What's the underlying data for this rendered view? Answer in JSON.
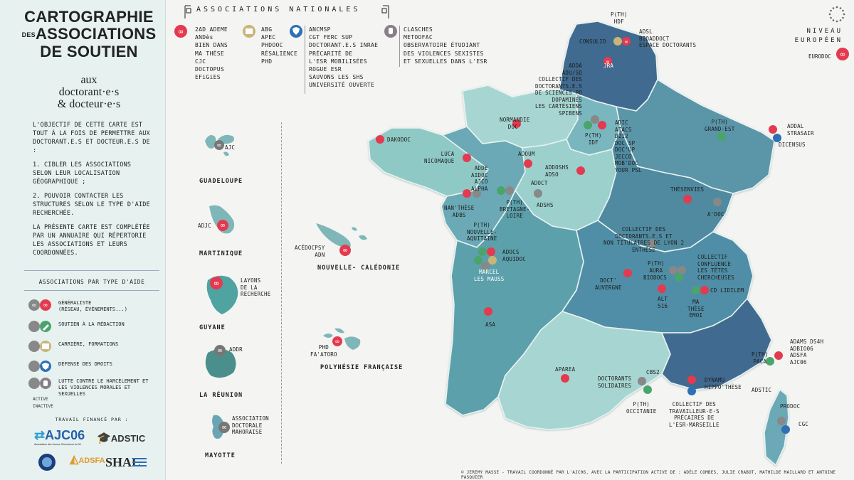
{
  "panel": {
    "title_line1": "CARTOGRAPHIE",
    "title_des": "DES",
    "title_line2": "ASSOCIATIONS",
    "title_line3": "DE SOUTIEN",
    "aux": "aux",
    "doctorants": "doctorant·e·s",
    "docteurs": "& docteur·e·s",
    "intro": "L'OBJECTIF DE CETTE CARTE EST TOUT À LA FOIS DE PERMETTRE AUX DOCTORANT.E.S ET DOCTEUR.E.S DE :",
    "point1": "1. CIBLER LES ASSOCIATIONS SELON LEUR LOCALISATION GÉOGRAPHIQUE ;",
    "point2": "2. POUVOIR CONTACTER LES STRUCTURES SELON LE TYPE D'AIDE RECHERCHÉE.",
    "outro": "LA PRÉSENTE CARTE EST COMPLÉTÉE PAR UN ANNUAIRE QUI RÉPERTORIE LES ASSOCIATIONS ET LEURS COORDONNÉES.",
    "types_title": "ASSOCIATIONS PAR TYPE D'AIDE",
    "types": [
      {
        "label": "GÉNÉRALISTE\n(RÉSEAU, ÉVÉNEMENTS...)",
        "icon": "infinity-icon",
        "color": "#e43a4f"
      },
      {
        "label": "SOUTIEN À LA RÉDACTION",
        "icon": "pen-icon",
        "color": "#4aa56b"
      },
      {
        "label": "CARRIÈRE, FORMATIONS",
        "icon": "book-icon",
        "color": "#c9b677"
      },
      {
        "label": "DÉFENSE DES DROITS",
        "icon": "shield-icon",
        "color": "#2f6fb6"
      },
      {
        "label": "LUTTE CONTRE LE HARCÈLEMENT ET LES VIOLENCES MORALES ET SEXUELLES",
        "icon": "hand-icon",
        "color": "#8a7f86"
      }
    ],
    "active": "ACTIVE",
    "inactive": "INACTIVE",
    "funded": "TRAVAIL FINANCÉ PAR :",
    "sponsors": [
      "AJC06",
      "ADSTIC",
      "ADSFA"
    ],
    "sponsor_ajc06_sub": "Association des Jeunes Chercheurs du 06"
  },
  "national": {
    "title": "ASSOCIATIONS NATIONALES",
    "general": [
      "2AD ADEME",
      "ANDès",
      "BIEN DANS\nMA THÈSE",
      "CJC",
      "DOCTOPUS",
      "EFiGiES"
    ],
    "career": [
      "ABG",
      "APEC",
      "PHDOOC",
      "RÉSALIENCE\nPHD"
    ],
    "rights": [
      "ANCMSP",
      "CGT FERC SUP",
      "DOCTORANT.E.S INRAE",
      "PRÉCARITÉ DE\nL'ESR MOBILISÉES",
      "ROGUE ESR",
      "SAUVONS LES SHS",
      "UNIVERSITÉ OUVERTE"
    ],
    "harassment": [
      "CLASCHES",
      "METOOFAC",
      "OBSERVATOIRE ÉTUDIANT\nDES VIOLENCES SEXISTES\nET SEXUELLES DANS L'ESR"
    ]
  },
  "europe": {
    "title1": "NIVEAU",
    "title2": "EUROPÉEN",
    "item": "EURODOC"
  },
  "territories": {
    "guadeloupe": {
      "name": "GUADELOUPE",
      "assoc": "AJC"
    },
    "martinique": {
      "name": "MARTINIQUE",
      "assoc": "ADJC"
    },
    "guyane": {
      "name": "GUYANE",
      "assoc": "LAYONS\nDE LA\nRECHERCHE"
    },
    "reunion": {
      "name": "LA RÉUNION",
      "assoc": "ADDR"
    },
    "mayotte": {
      "name": "MAYOTTE",
      "assoc": "ASSOCIATION\nDOCTORALE\nMAHORAISE"
    },
    "caledonie": {
      "name": "NOUVELLE-\nCALÉDONIE",
      "assoc": "ACÉDOCPSY\nADN"
    },
    "polynesie": {
      "name": "POLYNÉSIE\nFRANÇAISE",
      "assoc": "PHD\nFA'ATORO"
    }
  },
  "regions": {
    "hdf": "P(TH)\nHDF",
    "hdf_list": "ADSL\nBIOADDOCT\nESPACE DOCTORANTS",
    "consulid": "CONSULID",
    "jra": "JRA",
    "paris_top": "ADDA\nADU/SQ\nCOLLECTIF DES\nDOCTORANTS.E.S\nDE SCIENCES PO\nDOPAMINES\nLES CARTÉSIENS\nSPIBENS",
    "idf": "P(TH)\nIDF",
    "idf_list": "ADIC\nATACS\nD212\nDOC SP\nDOC'UP\nJECCO\nMOB'DOC\nYOUR PSL",
    "grand_est": "P(TH)\nGRAND-EST",
    "strasbourg": "ADDAL\nSTRASAIR",
    "dicensus": "DICENSUS",
    "normandie": "NORMANDIE\nDOC'",
    "dakodoc": "DAKODOC",
    "luca": "LUCA\nNICOMAQUE",
    "adoum": "ADOUM",
    "addoshs": "ADDOSHS\nADSO",
    "adde": "ADDE\nAIDOC\nAJCO\nALPHA",
    "adoct": "ADOCT",
    "adshs": "ADSHS",
    "bretagne": "P(TH)\nBRETAGNE-\nLOIRE",
    "nantes": "NAN'THÈSE\nADBS",
    "thesenvies": "THÈSENVIES",
    "adoc": "A'DOC",
    "lyon": "COLLECTIF DES\nDOCTORANTS.E.S ET\nNON TITULAIRES DE LYON 2\nENTHÈSE",
    "nouvelle_aquitaine": "P(TH)\nNOUVELLE-\nAQUITAINE",
    "adocs": "ADOCS\nAQUIDOC",
    "marcel": "MARCEL\nLES MAUSS",
    "confluence": "COLLECTIF\nCONFLUENCE\nLES TÊTES\nCHERCHEUSES",
    "aura": "P(TH)\nAURA",
    "biodocs": "BIODOCS",
    "cd_lidilem": "CD LIDILEM",
    "doct_auvergne": "DOCT'\nAUVERGNE",
    "alt516": "ALT\n516",
    "ma_these": "MA\nTHÈSE\nÉMOI",
    "asa": "ASA",
    "aparea": "APAREA",
    "cbs2": "CBS2",
    "doctorants_solidaires": "DOCTORANTS\nSOLIDAIRES",
    "occitanie": "P(TH)\nOCCITANIE",
    "dynamu": "DYNAMU\nHIPPO'THÈSE",
    "marseille": "COLLECTIF DES\nTRAVAILLEUR·E·S\nPRÉCAIRES DE\nL'ESR-MARSEILLE",
    "paca_list": "ADAMS DS4H\nADBIO06\nADSFA\nAJC06",
    "paca": "P(TH)\nPACA",
    "adstic": "ADSTIC",
    "prodoc": "PRODOC",
    "cgc": "CGC"
  },
  "credits": "© JEREMY MASSE - TRAVAIL COORDONNÉ PAR L'AJC06, AVEC LA PARTICIPATION ACTIVE DE : ADÈLE COMBES, JULIE CRABOT, MATHILDE MAILLARD ET ANTOINE PASQUIER",
  "colors": {
    "generaliste": "#e43a4f",
    "redaction": "#4aa56b",
    "carriere": "#c9b677",
    "droits": "#2f6fb6",
    "harcelement": "#8a7f86",
    "region_dark": "#3f6b8f",
    "region_mid": "#5a95a8",
    "region_light": "#a7d6d2"
  }
}
